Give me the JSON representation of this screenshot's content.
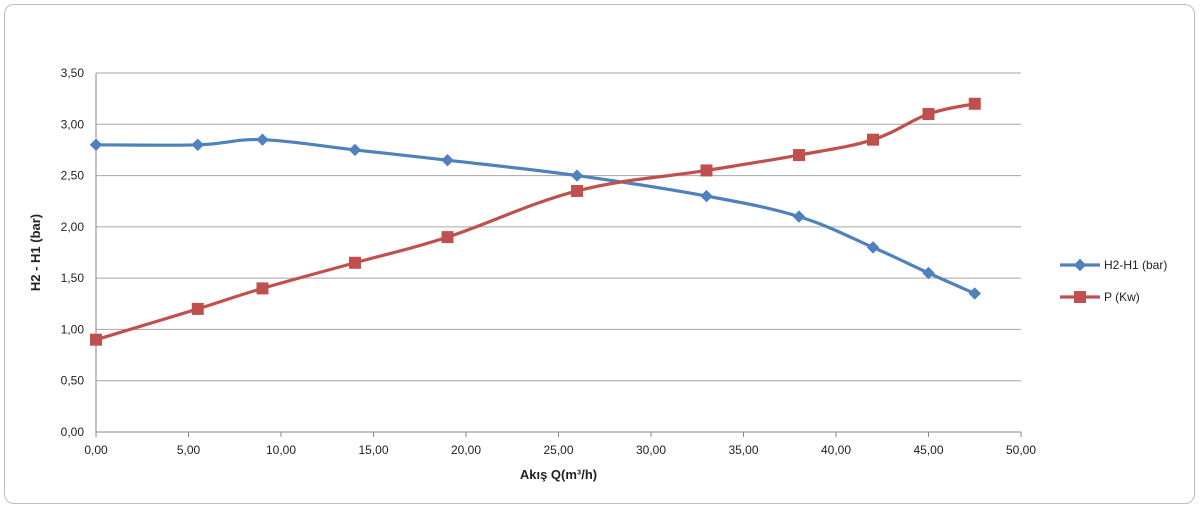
{
  "chart_data": {
    "type": "line",
    "title": "",
    "xlabel": "Akış Q(m³/h)",
    "ylabel": "H2 - H1 (bar)",
    "xlim": [
      0,
      50
    ],
    "ylim": [
      0,
      3.5
    ],
    "x_ticks": [
      "0,00",
      "5,00",
      "10,00",
      "15,00",
      "20,00",
      "25,00",
      "30,00",
      "35,00",
      "40,00",
      "45,00",
      "50,00"
    ],
    "y_ticks": [
      "0,00",
      "0,50",
      "1,00",
      "1,50",
      "2,00",
      "2,50",
      "3,00",
      "3,50"
    ],
    "x_tick_values": [
      0,
      5,
      10,
      15,
      20,
      25,
      30,
      35,
      40,
      45,
      50
    ],
    "y_tick_values": [
      0,
      0.5,
      1.0,
      1.5,
      2.0,
      2.5,
      3.0,
      3.5
    ],
    "grid": "horizontal",
    "legend_position": "right",
    "series": [
      {
        "name": "H2-H1 (bar)",
        "color": "#4f81bd",
        "marker": "diamond",
        "points": [
          [
            0,
            2.8
          ],
          [
            5.5,
            2.8
          ],
          [
            9,
            2.85
          ],
          [
            14,
            2.75
          ],
          [
            19,
            2.65
          ],
          [
            26,
            2.5
          ],
          [
            33,
            2.3
          ],
          [
            38,
            2.1
          ],
          [
            42,
            1.8
          ],
          [
            45,
            1.55
          ],
          [
            47.5,
            1.35
          ]
        ]
      },
      {
        "name": "P (Kw)",
        "color": "#c0504d",
        "marker": "square",
        "points": [
          [
            0,
            0.9
          ],
          [
            5.5,
            1.2
          ],
          [
            9,
            1.4
          ],
          [
            14,
            1.65
          ],
          [
            19,
            1.9
          ],
          [
            26,
            2.35
          ],
          [
            33,
            2.55
          ],
          [
            38,
            2.7
          ],
          [
            42,
            2.85
          ],
          [
            45,
            3.1
          ],
          [
            47.5,
            3.2
          ]
        ]
      }
    ]
  }
}
